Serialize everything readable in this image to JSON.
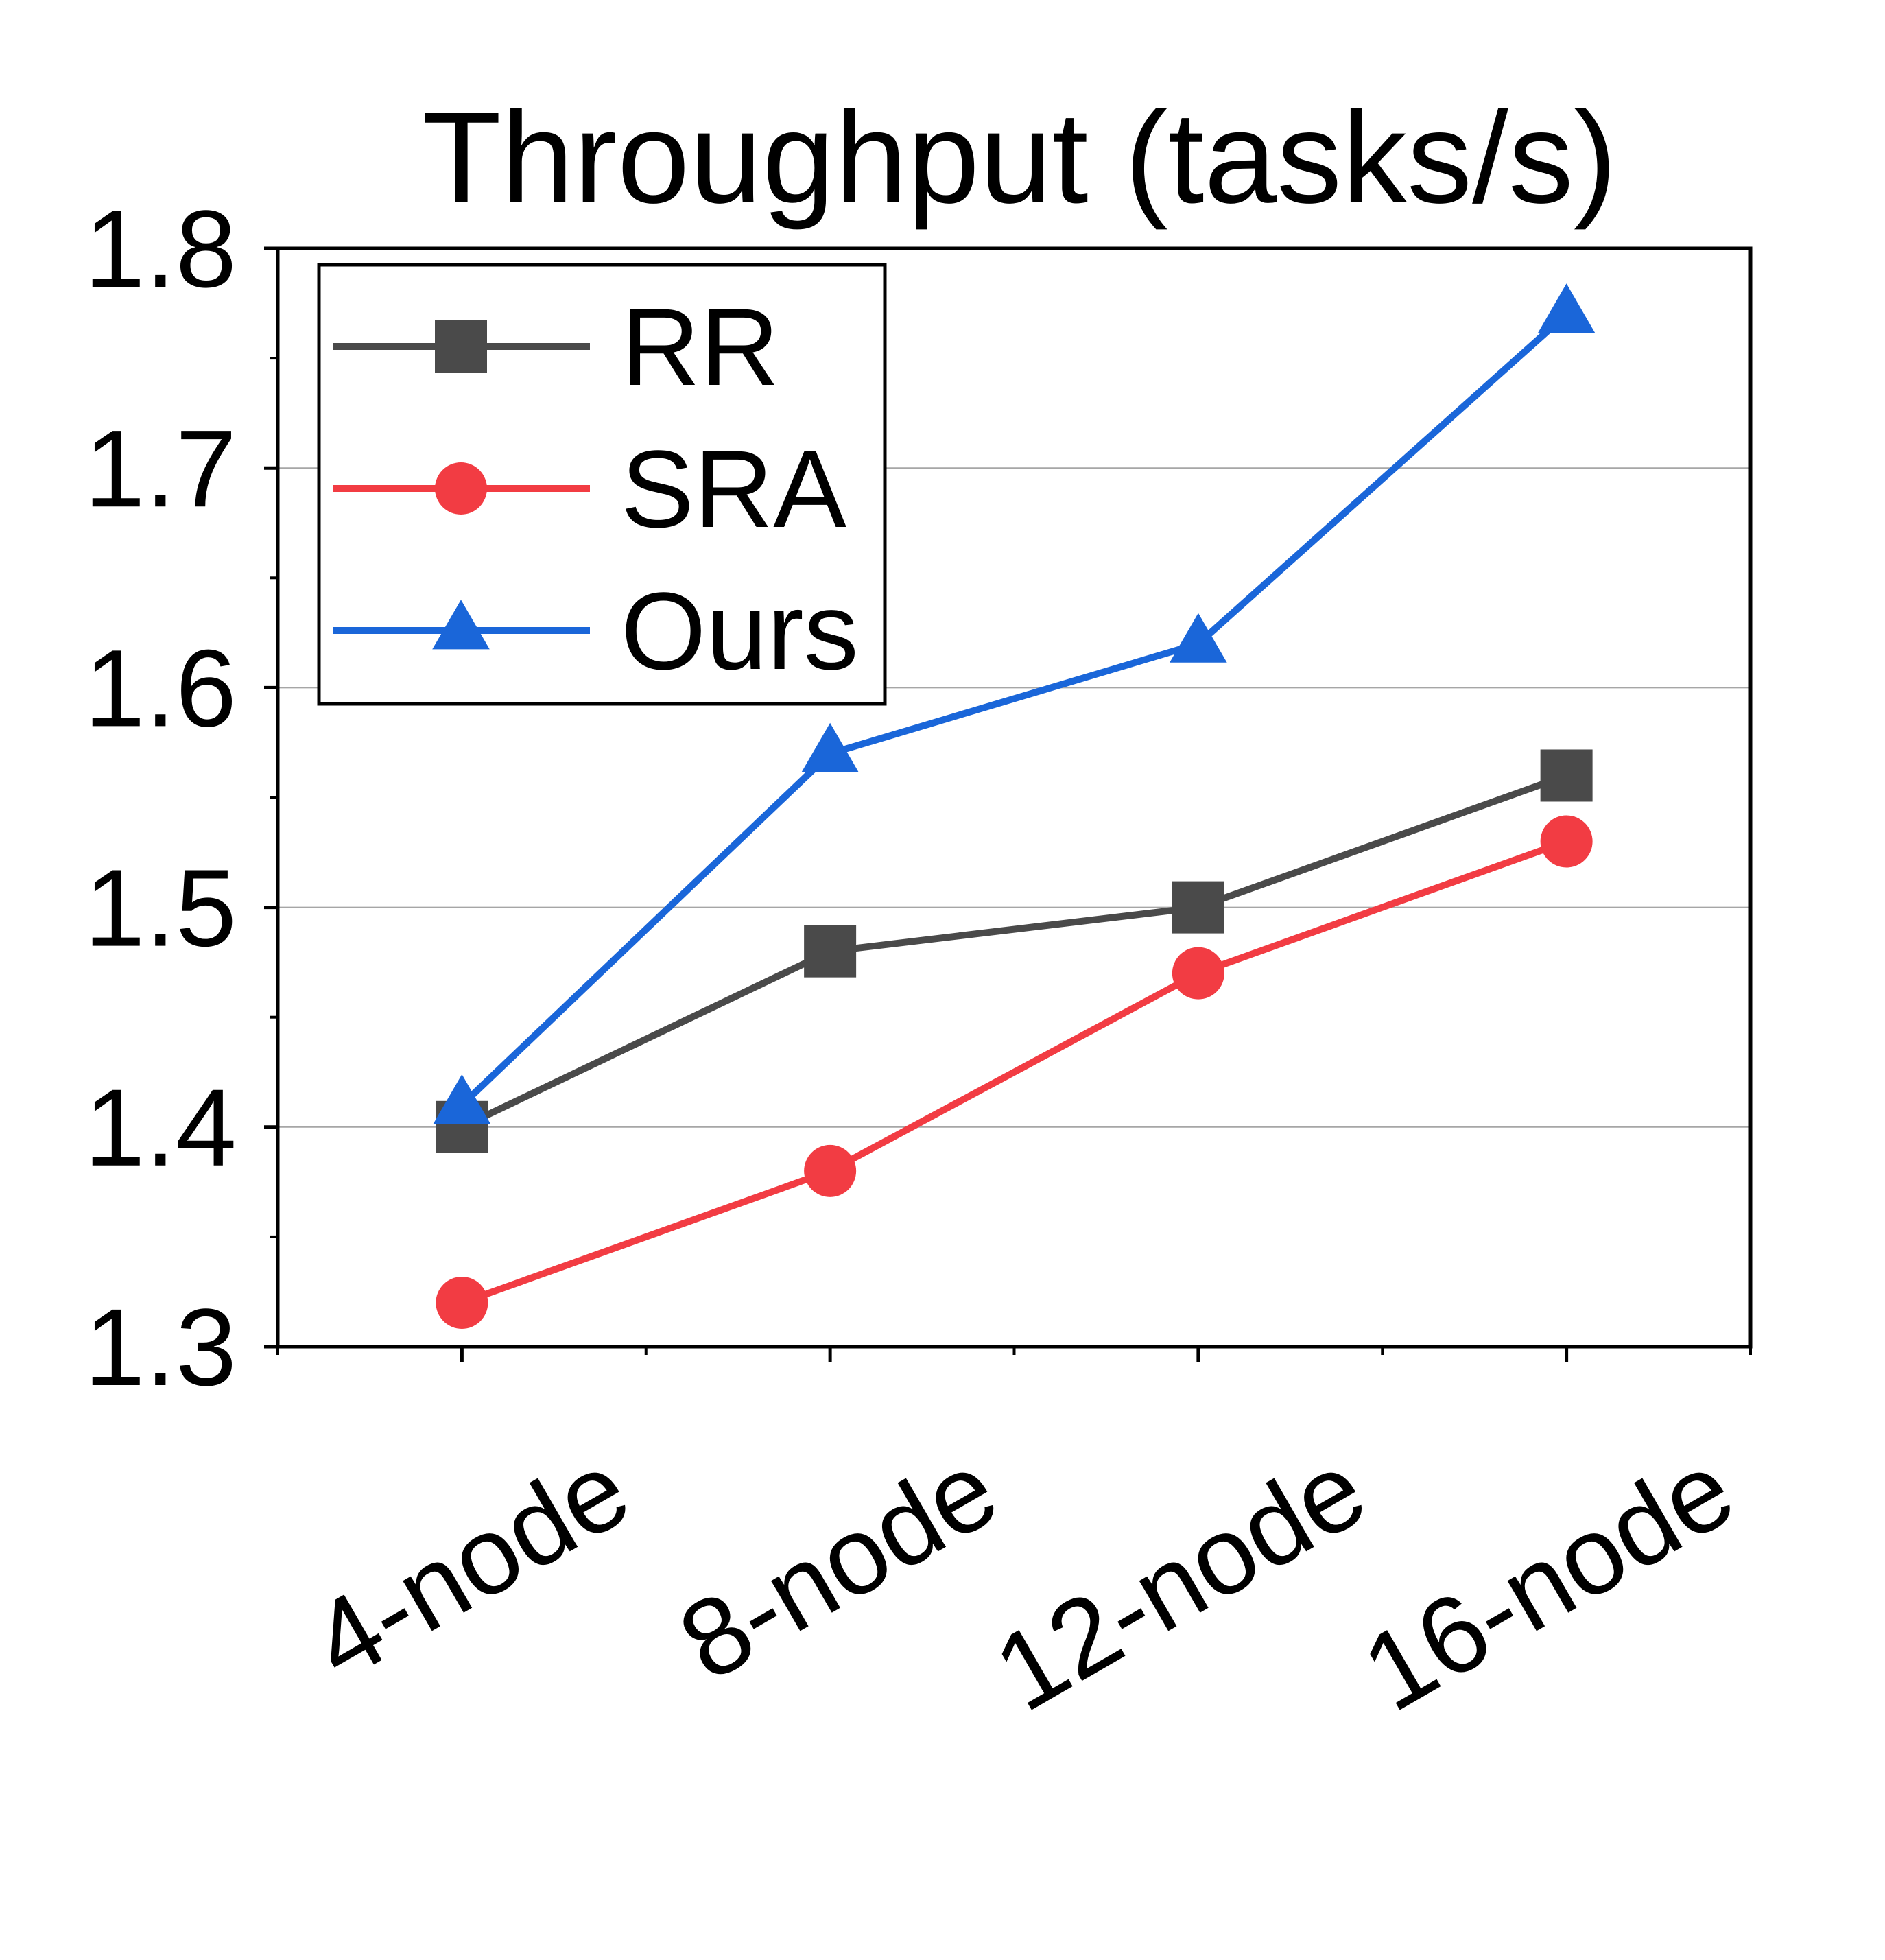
{
  "chart_data": {
    "type": "line",
    "title": "Throughput (tasks/s)",
    "xlabel": "",
    "ylabel": "",
    "categories": [
      "4-node",
      "8-node",
      "12-node",
      "16-node"
    ],
    "ylim": [
      1.3,
      1.8
    ],
    "yticks": [
      "1.3",
      "1.4",
      "1.5",
      "1.6",
      "1.7",
      "1.8"
    ],
    "grid": "horizontal",
    "legend_position": "top-left",
    "series": [
      {
        "name": "RR",
        "values": [
          1.4,
          1.48,
          1.5,
          1.56
        ],
        "color": "#4a4a4a",
        "marker": "square"
      },
      {
        "name": "SRA",
        "values": [
          1.32,
          1.38,
          1.47,
          1.53
        ],
        "color": "#f23c43",
        "marker": "circle"
      },
      {
        "name": "Ours",
        "values": [
          1.41,
          1.57,
          1.62,
          1.77
        ],
        "color": "#1a66d9",
        "marker": "triangle"
      }
    ]
  }
}
